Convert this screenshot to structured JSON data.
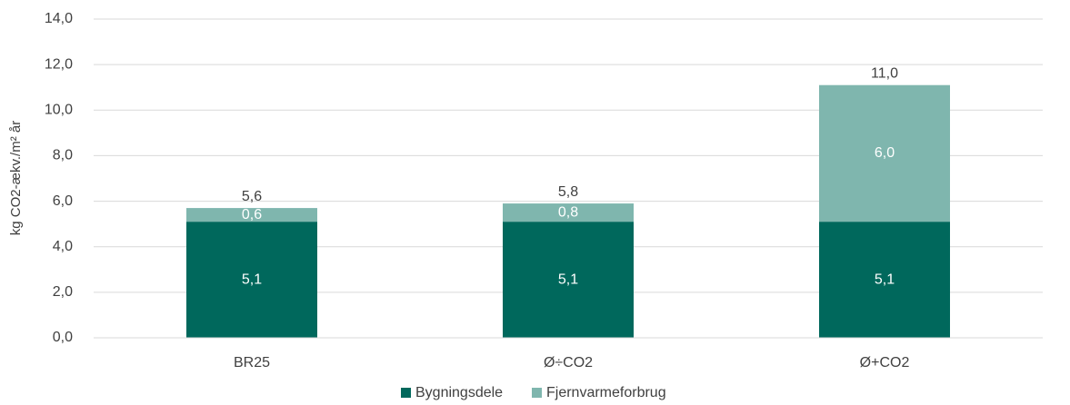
{
  "chart_data": {
    "type": "stacked_bar",
    "y_label": "kg CO2-ækv./m² år",
    "categories": [
      "BR25",
      "Ø÷CO2",
      "Ø+CO2"
    ],
    "series": [
      {
        "name": "Bygningsdele",
        "color": "#00685c",
        "values": [
          5.1,
          5.1,
          5.1
        ],
        "value_labels": [
          "5,1",
          "5,1",
          "5,1"
        ]
      },
      {
        "name": "Fjernvarmeforbrug",
        "color": "#7fb6ae",
        "values": [
          0.6,
          0.8,
          6.0
        ],
        "value_labels": [
          "0,6",
          "0,8",
          "6,0"
        ]
      }
    ],
    "totals": [
      5.6,
      5.8,
      11.0
    ],
    "total_labels": [
      "5,6",
      "5,8",
      "11,0"
    ],
    "ylim": [
      0,
      14
    ],
    "yticks": [
      {
        "value": 0,
        "label": "0,0"
      },
      {
        "value": 2,
        "label": "2,0"
      },
      {
        "value": 4,
        "label": "4,0"
      },
      {
        "value": 6,
        "label": "6,0"
      },
      {
        "value": 8,
        "label": "8,0"
      },
      {
        "value": 10,
        "label": "10,0"
      },
      {
        "value": 12,
        "label": "12,0"
      },
      {
        "value": 14,
        "label": "14,0"
      }
    ],
    "grid": true,
    "legend": "bottom"
  }
}
